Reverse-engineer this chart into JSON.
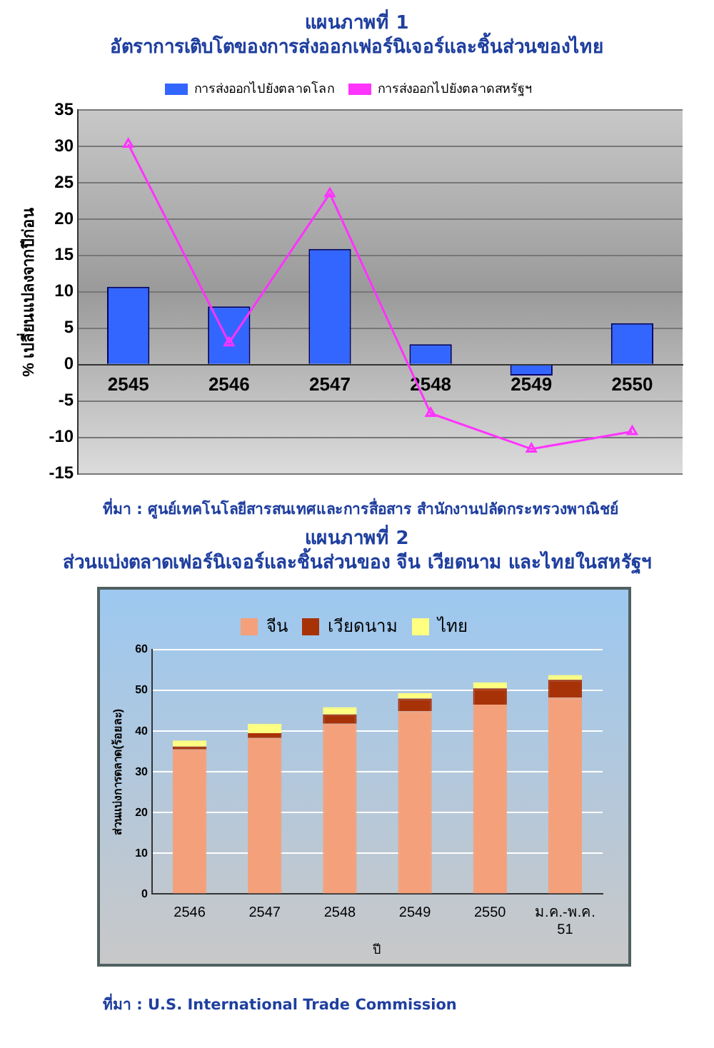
{
  "chart_data": [
    {
      "type": "bar",
      "title": "แผนภาพที่ 1",
      "subtitle": "อัตราการเติบโตของการส่งออกเฟอร์นิเจอร์และชิ้นส่วนของไทย",
      "ylabel": "% เปลี่ยนแปลงจากปีก่อน",
      "categories": [
        "2545",
        "2546",
        "2547",
        "2548",
        "2549",
        "2550"
      ],
      "series": [
        {
          "name": "การส่งออกไปยังตลาดโลก",
          "color": "#3366ff",
          "values": [
            10.7,
            8.0,
            15.9,
            2.8,
            -1.5,
            5.7
          ]
        },
        {
          "name": "การส่งออกไปยังตลาดสหรัฐฯ",
          "type": "line",
          "color": "#ff33ff",
          "values": [
            30.3,
            3.0,
            23.5,
            -6.7,
            -11.6,
            -9.2
          ]
        }
      ],
      "ylim": [
        -15,
        35
      ],
      "yticks": [
        -15,
        -10,
        -5,
        0,
        5,
        10,
        15,
        20,
        25,
        30,
        35
      ],
      "grid": "y",
      "legend": "top",
      "marker": "triangle",
      "annotations": [
        "ที่มา : ศูนย์เทคโนโลยีสารสนเทศและการสื่อสาร สำนักงานปลัดกระทรวงพาณิชย์"
      ]
    },
    {
      "type": "bar",
      "title": "แผนภาพที่ 2",
      "subtitle": "ส่วนแบ่งตลาดเฟอร์นิเจอร์และชิ้นส่วนของ จีน เวียดนาม และไทยในสหรัฐฯ",
      "xlabel": "ปี",
      "ylabel": "ส่วนแบ่งการตลาด(ร้อยละ)",
      "categories": [
        "2546",
        "2547",
        "2548",
        "2549",
        "2550",
        "ม.ค.-พ.ค. 51"
      ],
      "stacked": true,
      "series": [
        {
          "name": "จีน",
          "color": "#f4a07a",
          "values": [
            35.5,
            38.3,
            41.8,
            44.9,
            46.5,
            48.2
          ]
        },
        {
          "name": "เวียดนาม",
          "color": "#a83208",
          "values": [
            0.7,
            1.2,
            2.3,
            3.1,
            4.0,
            4.4
          ]
        },
        {
          "name": "ไทย",
          "color": "#ffff80",
          "values": [
            1.5,
            2.3,
            1.8,
            1.3,
            1.5,
            1.2
          ]
        }
      ],
      "ylim": [
        0,
        60
      ],
      "yticks": [
        0,
        10,
        20,
        30,
        40,
        50,
        60
      ],
      "grid": "y",
      "legend": "top",
      "annotations": [
        "ที่มา : U.S. International Trade Commission"
      ]
    }
  ]
}
